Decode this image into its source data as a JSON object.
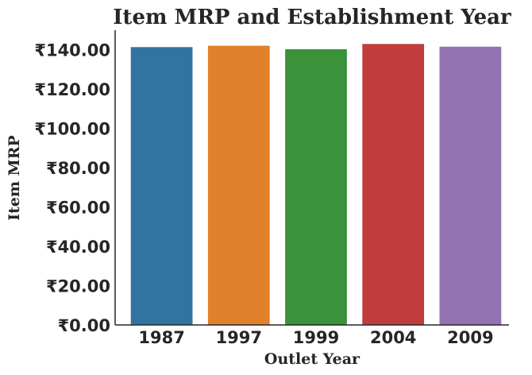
{
  "chart_data": {
    "type": "bar",
    "title": "Item MRP and Establishment Year",
    "xlabel": "Outlet Year",
    "ylabel": "Item MRP",
    "categories": [
      "1987",
      "1997",
      "1999",
      "2004",
      "2009"
    ],
    "values": [
      141.4,
      142.1,
      140.3,
      143.0,
      141.6
    ],
    "colors": [
      "#3274a1",
      "#e1812c",
      "#3a923a",
      "#c03d3e",
      "#9372b2"
    ],
    "ylim": [
      0,
      150
    ],
    "yticks": [
      {
        "value": 0,
        "label": "₹0.00"
      },
      {
        "value": 20,
        "label": "₹20.00"
      },
      {
        "value": 40,
        "label": "₹40.00"
      },
      {
        "value": 60,
        "label": "₹60.00"
      },
      {
        "value": 80,
        "label": "₹80.00"
      },
      {
        "value": 100,
        "label": "₹100.00"
      },
      {
        "value": 120,
        "label": "₹120.00"
      },
      {
        "value": 140,
        "label": "₹140.00"
      }
    ],
    "grid": false,
    "legend": "none"
  }
}
